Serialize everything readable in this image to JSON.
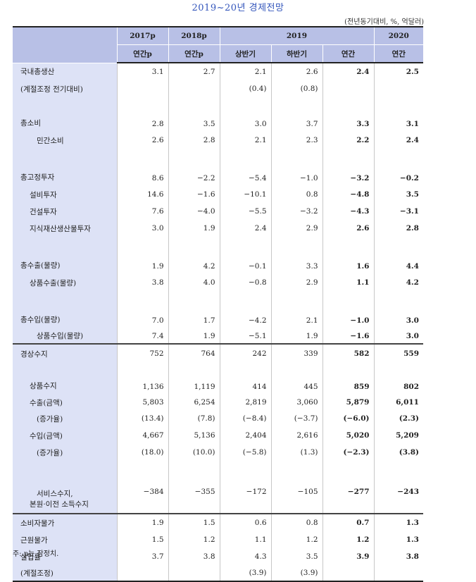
{
  "title": "2019~20년 경제전망",
  "unit": "(전년동기대비, %, 억달러)",
  "header": {
    "years": [
      "2017p",
      "2018p",
      "2019",
      "2020"
    ],
    "subs": [
      "연간p",
      "연간p",
      "상반기",
      "하반기",
      "연간",
      "연간"
    ]
  },
  "rows": [
    {
      "label": "국내총생산",
      "values": [
        "3.1",
        "2.7",
        "2.1",
        "2.6",
        "2.4",
        "2.5"
      ]
    },
    {
      "label": "(계절조정 전기대비)",
      "values": [
        "",
        "",
        "(0.4)",
        "(0.8)",
        "",
        ""
      ]
    },
    {
      "label": "총소비",
      "values": [
        "2.8",
        "3.5",
        "3.0",
        "3.7",
        "3.3",
        "3.1"
      ]
    },
    {
      "label": "민간소비",
      "values": [
        "2.6",
        "2.8",
        "2.1",
        "2.3",
        "2.2",
        "2.4"
      ]
    },
    {
      "label": "총고정투자",
      "values": [
        "8.6",
        "−2.2",
        "−5.4",
        "−1.0",
        "−3.2",
        "−0.2"
      ]
    },
    {
      "label": "설비투자",
      "values": [
        "14.6",
        "−1.6",
        "−10.1",
        "0.8",
        "−4.8",
        "3.5"
      ]
    },
    {
      "label": "건설투자",
      "values": [
        "7.6",
        "−4.0",
        "−5.5",
        "−3.2",
        "−4.3",
        "−3.1"
      ]
    },
    {
      "label": "지식재산생산물투자",
      "values": [
        "3.0",
        "1.9",
        "2.4",
        "2.9",
        "2.6",
        "2.8"
      ]
    },
    {
      "label": "총수출(물량)",
      "values": [
        "1.9",
        "4.2",
        "−0.1",
        "3.3",
        "1.6",
        "4.4"
      ]
    },
    {
      "label": "상품수출(물량)",
      "values": [
        "3.8",
        "4.0",
        "−0.8",
        "2.9",
        "1.1",
        "4.2"
      ]
    },
    {
      "label": "총수입(물량)",
      "values": [
        "7.0",
        "1.7",
        "−4.2",
        "2.1",
        "−1.0",
        "3.0"
      ]
    },
    {
      "label": "상품수입(물량)",
      "values": [
        "7.4",
        "1.9",
        "−5.1",
        "1.9",
        "−1.6",
        "3.0"
      ]
    },
    {
      "label": "경상수지",
      "values": [
        "752",
        "764",
        "242",
        "339",
        "582",
        "559"
      ]
    },
    {
      "label": "상품수지",
      "values": [
        "1,136",
        "1,119",
        "414",
        "445",
        "859",
        "802"
      ]
    },
    {
      "label": "수출(금액)",
      "values": [
        "5,803",
        "6,254",
        "2,819",
        "3,060",
        "5,879",
        "6,011"
      ]
    },
    {
      "label": "(증가율)",
      "values": [
        "(13.4)",
        "(7.8)",
        "(−8.4)",
        "(−3.7)",
        "(−6.0)",
        "(2.3)"
      ]
    },
    {
      "label": "수입(금액)",
      "values": [
        "4,667",
        "5,136",
        "2,404",
        "2,616",
        "5,020",
        "5,209"
      ]
    },
    {
      "label": "(증가율)",
      "values": [
        "(18.0)",
        "(10.0)",
        "(−5.8)",
        "(1.3)",
        "(−2.3)",
        "(3.8)"
      ]
    },
    {
      "label": "서비스수지,",
      "label2": "본원·이전 소득수지",
      "values": [
        "−384",
        "−355",
        "−172",
        "−105",
        "−277",
        "−243"
      ]
    },
    {
      "label": "소비자물가",
      "values": [
        "1.9",
        "1.5",
        "0.6",
        "0.8",
        "0.7",
        "1.3"
      ]
    },
    {
      "label": "근원물가",
      "values": [
        "1.5",
        "1.2",
        "1.1",
        "1.2",
        "1.2",
        "1.3"
      ]
    },
    {
      "label": "실업률",
      "values": [
        "3.7",
        "3.8",
        "4.3",
        "3.5",
        "3.9",
        "3.8"
      ]
    },
    {
      "label": "(계절조정)",
      "values": [
        "",
        "",
        "(3.9)",
        "(3.9)",
        "",
        ""
      ]
    }
  ],
  "note": "주: p는 잠정치."
}
